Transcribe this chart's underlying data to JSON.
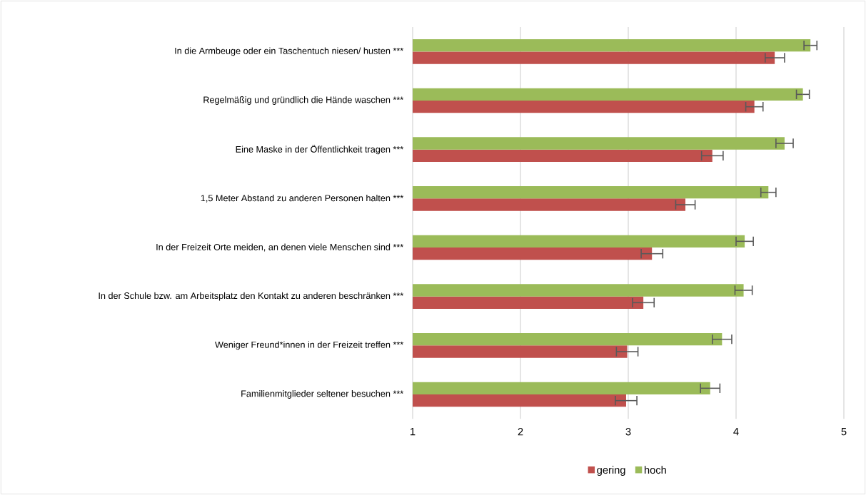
{
  "chart_data": {
    "type": "bar",
    "orientation": "horizontal",
    "categories": [
      "In die Armbeuge oder ein Taschentuch niesen/ husten ***",
      "Regelmäßig und gründlich die Hände waschen ***",
      "Eine Maske in der Öffentlichkeit tragen ***",
      "1,5 Meter Abstand zu anderen Personen halten ***",
      "In der Freizeit Orte meiden, an denen viele Menschen sind ***",
      "In der Schule bzw. am Arbeitsplatz den Kontakt zu anderen beschränken ***",
      "Weniger Freund*innen in der Freizeit treffen ***",
      "Familienmitglieder seltener besuchen ***"
    ],
    "series": [
      {
        "name": "gering",
        "color": "#c0504d",
        "values": [
          4.36,
          4.17,
          3.78,
          3.53,
          3.22,
          3.14,
          2.99,
          2.98
        ],
        "errors": [
          0.09,
          0.08,
          0.1,
          0.09,
          0.1,
          0.1,
          0.1,
          0.1
        ]
      },
      {
        "name": "hoch",
        "color": "#9bbb59",
        "values": [
          4.69,
          4.62,
          4.45,
          4.3,
          4.08,
          4.07,
          3.87,
          3.76
        ],
        "errors": [
          0.06,
          0.06,
          0.08,
          0.07,
          0.08,
          0.08,
          0.09,
          0.09
        ]
      }
    ],
    "xlim": [
      1,
      5
    ],
    "xticks": [
      1,
      2,
      3,
      4,
      5
    ],
    "grid": "x",
    "legend": "bottom"
  }
}
